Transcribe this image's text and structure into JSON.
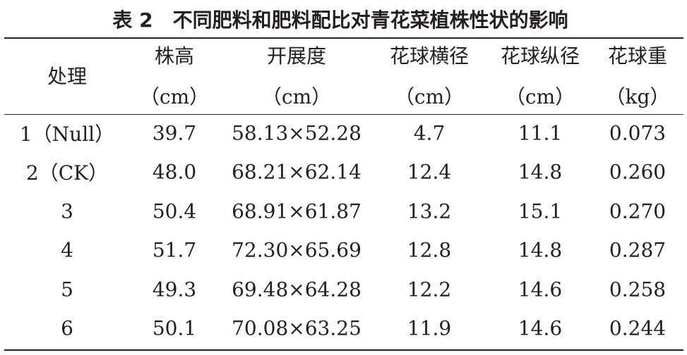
{
  "header": {
    "title": "表 2　不同肥料和肥料配比对青花菜植株性状的影响"
  },
  "table": {
    "columns": [
      {
        "name": "处理"
      },
      {
        "name": "株高",
        "unit": "（cm）"
      },
      {
        "name": "开展度",
        "unit": "（cm）"
      },
      {
        "name": "花球横径",
        "unit": "（cm）"
      },
      {
        "name": "花球纵径",
        "unit": "（cm）"
      },
      {
        "name": "花球重",
        "unit": "（kg）"
      }
    ],
    "rows": [
      [
        "1（Null）",
        "39.7",
        "58.13×52.28",
        "4.7",
        "11.1",
        "0.073"
      ],
      [
        "2（CK）",
        "48.0",
        "68.21×62.14",
        "12.4",
        "14.8",
        "0.260"
      ],
      [
        "3",
        "50.4",
        "68.91×61.87",
        "13.2",
        "15.1",
        "0.270"
      ],
      [
        "4",
        "51.7",
        "72.30×65.69",
        "12.8",
        "14.8",
        "0.287"
      ],
      [
        "5",
        "49.3",
        "69.48×64.28",
        "12.2",
        "14.6",
        "0.258"
      ],
      [
        "6",
        "50.1",
        "70.08×63.25",
        "11.9",
        "14.6",
        "0.244"
      ]
    ]
  }
}
